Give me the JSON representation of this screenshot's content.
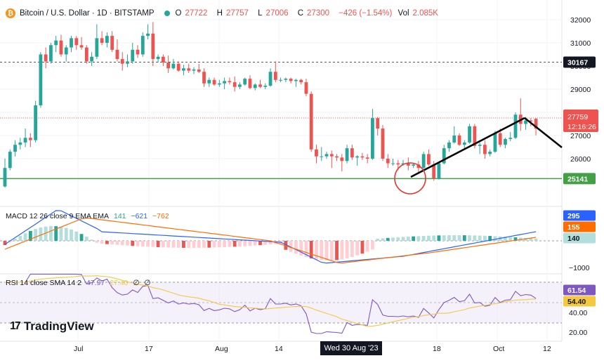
{
  "header": {
    "coin_symbol": "₿",
    "title": "Bitcoin / U.S. Dollar · 1D · BITSTAMP",
    "open_label": "O",
    "open": "27722",
    "high_label": "H",
    "high": "27757",
    "low_label": "L",
    "low": "27006",
    "close_label": "C",
    "close": "27300",
    "change": "−426 (−1.54%)",
    "vol_label": "Vol",
    "vol": "2.085K"
  },
  "colors": {
    "up": "#26a69a",
    "down": "#ef5350",
    "line": "#43a047",
    "macd": "#2962ff",
    "signal": "#ff6d00",
    "rsi": "#7e57c2",
    "rsi_ma": "#f5c842"
  },
  "price_axis": {
    "ticks": [
      "32000",
      "31000",
      "30000",
      "29000",
      "28000",
      "27000",
      "26000"
    ],
    "labels": {
      "level_high": "30167",
      "current": "27759",
      "countdown": "12:16:26",
      "support": "25141"
    }
  },
  "time_axis": {
    "ticks": [
      "Jul",
      "17",
      "Aug",
      "14",
      "18",
      "Oct",
      "12"
    ],
    "cursor": "Wed 30 Aug '23"
  },
  "macd": {
    "label": "MACD 12 26 close 9 EMA EMA",
    "v1": "141",
    "v2": "−621",
    "v3": "−762",
    "axis": {
      "macd_val": "295",
      "signal_val": "155",
      "hist_val": "140",
      "min_tick": "−1000"
    }
  },
  "rsi": {
    "label": "RSI 14 close SMA 14 2",
    "v1": "47.97",
    "v2": "27.40",
    "v3": "∅",
    "v4": "∅",
    "axis": {
      "rsi_val": "61.54",
      "ma_val": "54.40",
      "t40": "40.00",
      "t20": "20.00"
    }
  },
  "branding": {
    "mark": "17",
    "name": "TradingView"
  },
  "chart_data": {
    "type": "candlestick",
    "title": "Bitcoin / U.S. Dollar · 1D · BITSTAMP",
    "ylim": [
      24800,
      32400
    ],
    "horizontal_lines": [
      30167,
      25141
    ],
    "candles": [
      [
        24800,
        26000,
        24750,
        25600
      ],
      [
        25600,
        26400,
        25500,
        26300
      ],
      [
        26300,
        26800,
        26100,
        26600
      ],
      [
        26600,
        26900,
        26400,
        26700
      ],
      [
        26700,
        27300,
        26500,
        26900
      ],
      [
        26900,
        27100,
        26500,
        26800
      ],
      [
        26800,
        28500,
        26700,
        28300
      ],
      [
        28300,
        30600,
        28200,
        30500
      ],
      [
        30500,
        30800,
        29900,
        30200
      ],
      [
        30200,
        31000,
        30100,
        30900
      ],
      [
        30900,
        31300,
        30600,
        31100
      ],
      [
        31100,
        31350,
        30400,
        30500
      ],
      [
        30500,
        30900,
        30200,
        30800
      ],
      [
        30800,
        31300,
        30600,
        31200
      ],
      [
        31200,
        31300,
        30700,
        30900
      ],
      [
        30900,
        31250,
        30700,
        30800
      ],
      [
        30800,
        30900,
        30100,
        30200
      ],
      [
        30200,
        30600,
        30000,
        30400
      ],
      [
        30400,
        31800,
        30300,
        31200
      ],
      [
        31200,
        31500,
        30900,
        31000
      ],
      [
        31000,
        31450,
        30800,
        31300
      ],
      [
        31300,
        31500,
        30600,
        30700
      ],
      [
        30700,
        31150,
        30200,
        30300
      ],
      [
        30300,
        30600,
        29800,
        30100
      ],
      [
        30100,
        30500,
        29950,
        30200
      ],
      [
        30200,
        31000,
        30100,
        30700
      ],
      [
        30700,
        30900,
        30350,
        30500
      ],
      [
        30500,
        31450,
        30400,
        31300
      ],
      [
        31300,
        31800,
        31150,
        31400
      ],
      [
        31400,
        31900,
        30000,
        30300
      ],
      [
        30300,
        30500,
        30150,
        30400
      ],
      [
        30400,
        30500,
        30000,
        30150
      ],
      [
        30150,
        30450,
        29700,
        29900
      ],
      [
        29900,
        30300,
        29850,
        30100
      ],
      [
        30100,
        30200,
        29750,
        29800
      ],
      [
        29800,
        30050,
        29600,
        29900
      ],
      [
        29900,
        30100,
        29700,
        29800
      ],
      [
        29800,
        29950,
        29650,
        29850
      ],
      [
        29850,
        30100,
        29700,
        29750
      ],
      [
        29750,
        29900,
        29100,
        29250
      ],
      [
        29250,
        29500,
        29100,
        29400
      ],
      [
        29400,
        29500,
        29150,
        29200
      ],
      [
        29200,
        29400,
        29100,
        29250
      ],
      [
        29250,
        29500,
        29000,
        29350
      ],
      [
        29350,
        29500,
        29200,
        29300
      ],
      [
        29300,
        29550,
        28900,
        29100
      ],
      [
        29100,
        29300,
        29000,
        29200
      ],
      [
        29200,
        29500,
        29150,
        29450
      ],
      [
        29450,
        29600,
        29000,
        29050
      ],
      [
        29050,
        29250,
        28950,
        29200
      ],
      [
        29200,
        29400,
        29050,
        29100
      ],
      [
        29100,
        29250,
        29000,
        29150
      ],
      [
        29150,
        29900,
        29100,
        29750
      ],
      [
        29750,
        30200,
        29300,
        29400
      ],
      [
        29400,
        29500,
        29300,
        29400
      ],
      [
        29400,
        29500,
        29300,
        29450
      ],
      [
        29450,
        29500,
        29250,
        29350
      ],
      [
        29350,
        29450,
        29100,
        29400
      ],
      [
        29400,
        29450,
        29200,
        29300
      ],
      [
        29300,
        29450,
        28700,
        28800
      ],
      [
        28800,
        28900,
        26300,
        26400
      ],
      [
        26400,
        26600,
        25800,
        26100
      ],
      [
        26100,
        26500,
        25900,
        26100
      ],
      [
        26100,
        26300,
        26000,
        26200
      ],
      [
        26200,
        26350,
        25600,
        26100
      ],
      [
        26100,
        26200,
        25900,
        26050
      ],
      [
        26050,
        26200,
        25450,
        25900
      ],
      [
        25900,
        26600,
        25800,
        26450
      ],
      [
        26450,
        26600,
        25950,
        26050
      ],
      [
        26050,
        26150,
        25700,
        26100
      ],
      [
        26100,
        26250,
        25950,
        26050
      ],
      [
        26050,
        26200,
        25800,
        26000
      ],
      [
        26000,
        28150,
        25950,
        27750
      ],
      [
        27750,
        27800,
        27000,
        27300
      ],
      [
        27300,
        27450,
        25900,
        26000
      ],
      [
        26000,
        26200,
        25600,
        25800
      ],
      [
        25800,
        26000,
        25700,
        25800
      ],
      [
        25800,
        25950,
        25500,
        25750
      ],
      [
        25750,
        25950,
        25700,
        25800
      ],
      [
        25800,
        26050,
        25500,
        25700
      ],
      [
        25700,
        25800,
        25600,
        25750
      ],
      [
        25750,
        25900,
        25400,
        25600
      ],
      [
        25600,
        26300,
        25500,
        26200
      ],
      [
        26200,
        26400,
        25700,
        25750
      ],
      [
        25750,
        25900,
        25050,
        25150
      ],
      [
        25150,
        25850,
        25100,
        25800
      ],
      [
        25800,
        26600,
        25750,
        26450
      ],
      [
        26450,
        26800,
        26300,
        26700
      ],
      [
        26700,
        27400,
        26650,
        27000
      ],
      [
        27000,
        27100,
        26550,
        26600
      ],
      [
        26600,
        26800,
        26400,
        26700
      ],
      [
        26700,
        27500,
        26650,
        27400
      ],
      [
        27400,
        27500,
        26450,
        26550
      ],
      [
        26550,
        26700,
        26200,
        26600
      ],
      [
        26600,
        26800,
        26000,
        26200
      ],
      [
        26200,
        26400,
        26100,
        26300
      ],
      [
        26300,
        27200,
        26250,
        27100
      ],
      [
        27100,
        27300,
        26500,
        26600
      ],
      [
        26600,
        26900,
        26450,
        26850
      ],
      [
        26850,
        27150,
        26750,
        26900
      ],
      [
        26900,
        28000,
        26850,
        27900
      ],
      [
        27900,
        28600,
        27200,
        27500
      ],
      [
        27500,
        27800,
        27250,
        27650
      ],
      [
        27650,
        27750,
        27400,
        27600
      ],
      [
        27722,
        27757,
        27006,
        27300
      ]
    ]
  }
}
